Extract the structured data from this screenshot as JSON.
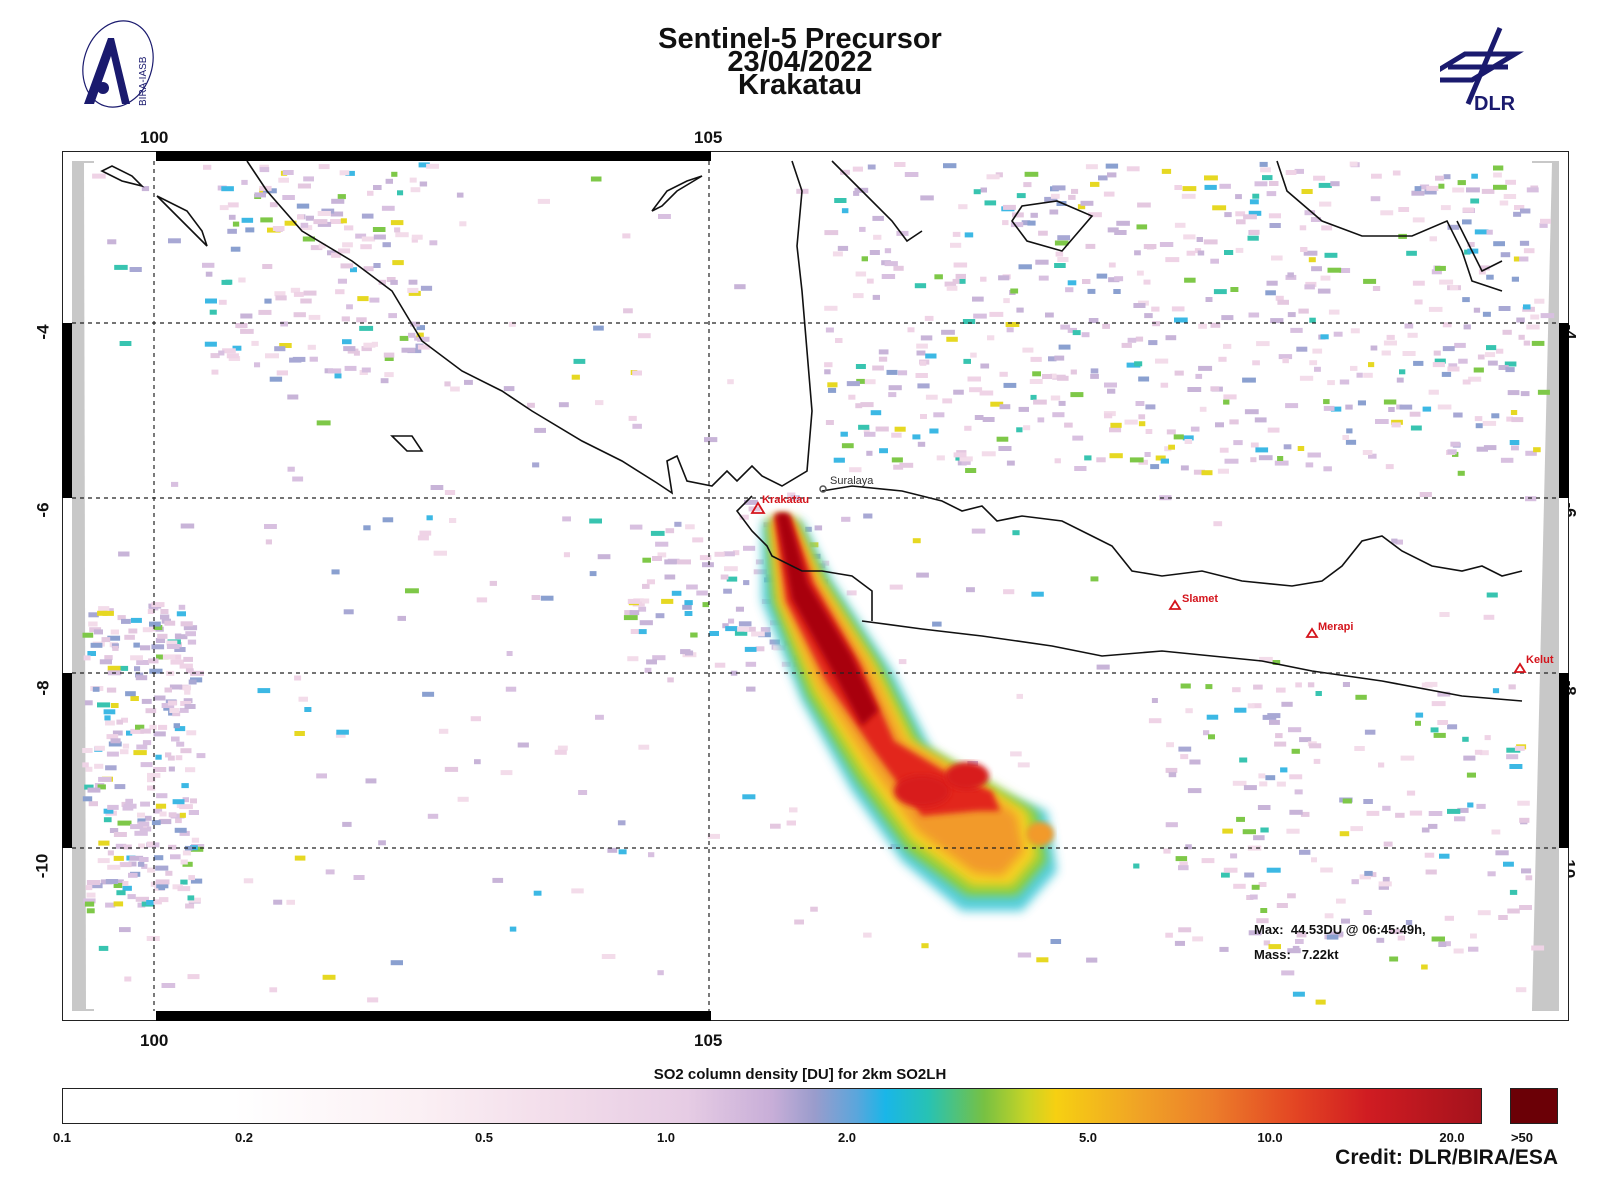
{
  "header": {
    "title_line1": "Sentinel-5 Precursor",
    "title_line2": "23/04/2022",
    "title_line3": "Krakatau"
  },
  "logos": {
    "left_text": "BIRA-IASB",
    "right_text": "DLR"
  },
  "axes": {
    "lon_ticks": [
      "100",
      "105"
    ],
    "lat_ticks": [
      "-4",
      "-6",
      "-8",
      "-10"
    ]
  },
  "places": [
    {
      "name": "Krakatau",
      "type": "volcano"
    },
    {
      "name": "Suralaya",
      "type": "city"
    },
    {
      "name": "Slamet",
      "type": "volcano"
    },
    {
      "name": "Merapi",
      "type": "volcano"
    },
    {
      "name": "Kelut",
      "type": "volcano"
    }
  ],
  "stats": {
    "max_label": "Max:",
    "max_value": "44.53DU @ 06:45:49h,",
    "mass_label": "Mass:",
    "mass_value": "7.22kt"
  },
  "colorbar": {
    "title": "SO2 column density [DU] for 2km SO2LH",
    "ticks": [
      "0.1",
      "0.2",
      "0.5",
      "1.0",
      "2.0",
      "5.0",
      "10.0",
      "20.0",
      ">50"
    ]
  },
  "credit": "Credit: DLR/BIRA/ESA",
  "colors": {
    "coast": "#111111",
    "volcano_marker": "#d4141c",
    "plume_core": "#b3000c",
    "overflow": "#6b0006"
  }
}
